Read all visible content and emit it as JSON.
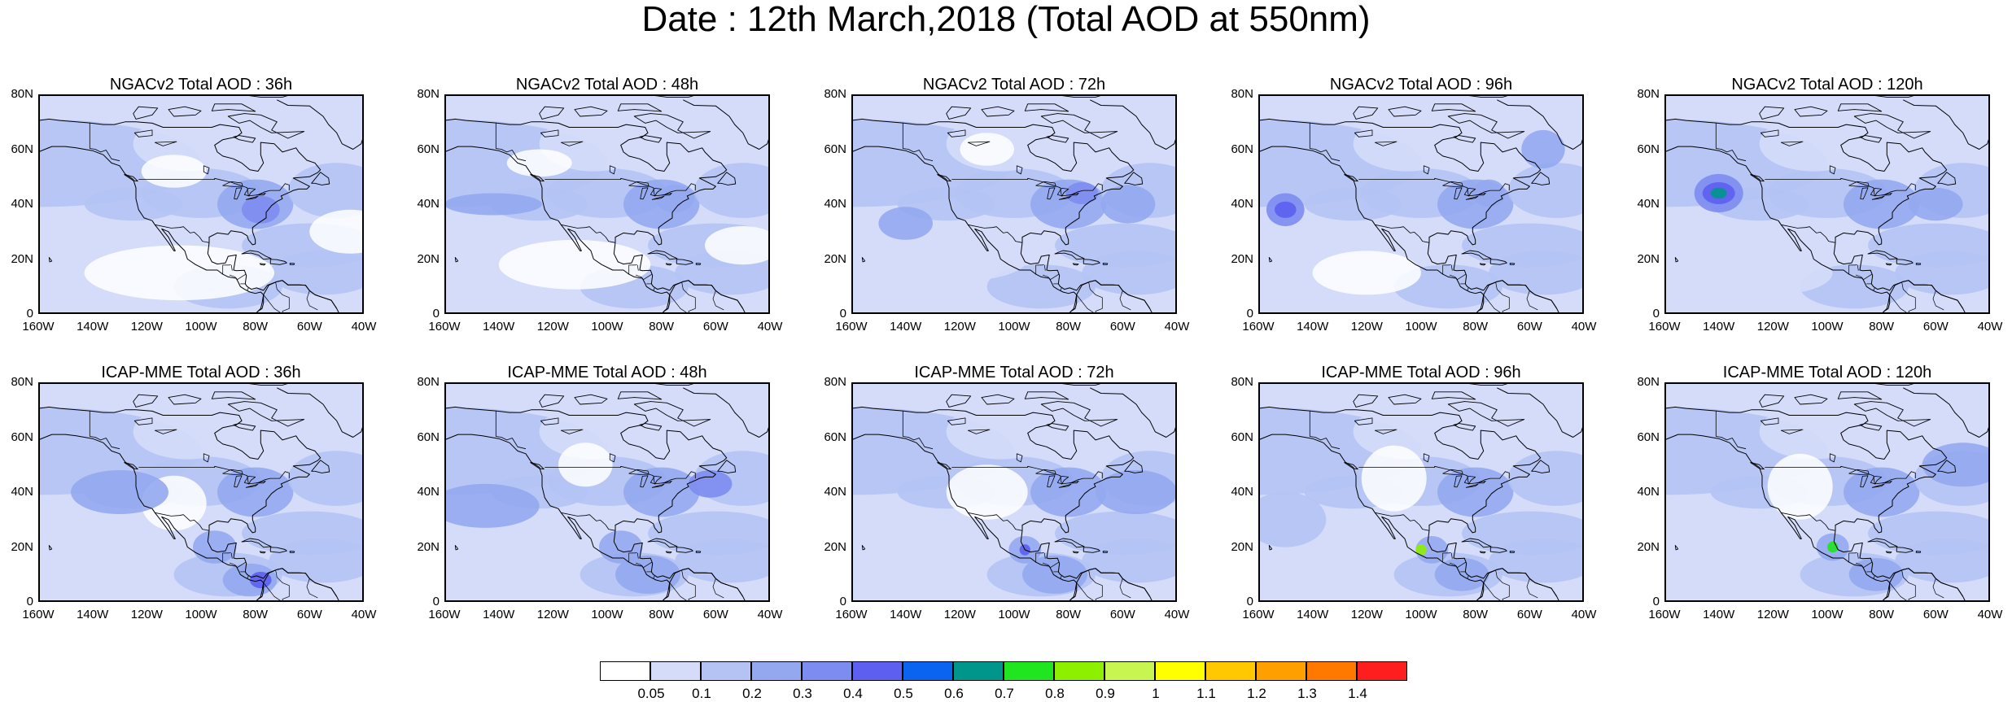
{
  "title": "Date : 12th March,2018 (Total AOD at 550nm)",
  "y_ticks": [
    "80N",
    "60N",
    "40N",
    "20N",
    "0"
  ],
  "x_ticks": [
    "160W",
    "140W",
    "120W",
    "100W",
    "80W",
    "60W",
    "40W"
  ],
  "panels": [
    {
      "title": "NGACv2 Total AOD : 36h"
    },
    {
      "title": "NGACv2 Total AOD : 48h"
    },
    {
      "title": "NGACv2 Total AOD : 72h"
    },
    {
      "title": "NGACv2 Total AOD : 96h"
    },
    {
      "title": "NGACv2 Total AOD : 120h"
    },
    {
      "title": "ICAP-MME Total AOD : 36h"
    },
    {
      "title": "ICAP-MME Total AOD : 48h"
    },
    {
      "title": "ICAP-MME Total AOD : 72h"
    },
    {
      "title": "ICAP-MME Total AOD : 96h"
    },
    {
      "title": "ICAP-MME Total AOD : 120h"
    }
  ],
  "colorbar": {
    "labels": [
      "0.05",
      "0.1",
      "0.2",
      "0.3",
      "0.4",
      "0.5",
      "0.6",
      "0.7",
      "0.8",
      "0.9",
      "1",
      "1.1",
      "1.2",
      "1.3",
      "1.4"
    ],
    "colors": [
      "#ffffff",
      "#d4dcfa",
      "#b4c3f4",
      "#94a8f0",
      "#7d8cf0",
      "#5c5ff0",
      "#0a64f0",
      "#00968c",
      "#1fe61f",
      "#8cf000",
      "#c8f550",
      "#ffff00",
      "#ffc800",
      "#ffa000",
      "#ff7800",
      "#ff1e1e"
    ]
  }
}
